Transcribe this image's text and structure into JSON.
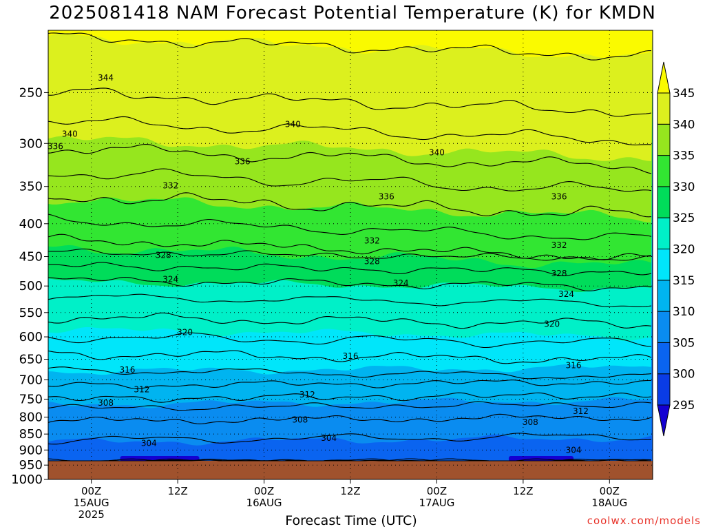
{
  "title": "2025081418 NAM Forecast Potential Temperature (K) for KMDN",
  "credit": "coolwx.com/models",
  "chart_data": {
    "type": "heatmap",
    "title": "2025081418 NAM Forecast Potential Temperature (K) for KMDN",
    "xlabel": "Forecast Time (UTC)",
    "ylabel": "",
    "y_scale": "log",
    "y_reversed": true,
    "ylim": [
      1000,
      200
    ],
    "xlim": [
      "2025-08-14 18Z",
      "2025-08-18 06Z"
    ],
    "grid": true,
    "y_ticks": [
      250,
      300,
      350,
      400,
      450,
      500,
      550,
      600,
      650,
      700,
      750,
      800,
      850,
      900,
      950,
      1000
    ],
    "x_ticks": [
      {
        "time": "2025-08-15 00Z",
        "lines": [
          "00Z",
          "15AUG",
          "2025"
        ]
      },
      {
        "time": "2025-08-15 12Z",
        "lines": [
          "12Z"
        ]
      },
      {
        "time": "2025-08-16 00Z",
        "lines": [
          "00Z",
          "16AUG"
        ]
      },
      {
        "time": "2025-08-16 12Z",
        "lines": [
          "12Z"
        ]
      },
      {
        "time": "2025-08-17 00Z",
        "lines": [
          "00Z",
          "17AUG"
        ]
      },
      {
        "time": "2025-08-17 12Z",
        "lines": [
          "12Z"
        ]
      },
      {
        "time": "2025-08-18 00Z",
        "lines": [
          "00Z",
          "18AUG"
        ]
      }
    ],
    "colorbar": {
      "levels": [
        295,
        300,
        305,
        310,
        315,
        320,
        325,
        330,
        335,
        340,
        345
      ],
      "labels": [
        "345",
        "340",
        "335",
        "330",
        "325",
        "320",
        "315",
        "310",
        "305",
        "300",
        "295"
      ],
      "colors": [
        "#1400d2",
        "#0a3ce6",
        "#0a64f0",
        "#0a8cf0",
        "#00b4f0",
        "#00e6fa",
        "#00f0c8",
        "#00dc5a",
        "#32e632",
        "#96e61e",
        "#dcf01e",
        "#fafa00"
      ]
    },
    "isotherms": [
      {
        "theta": 304,
        "pressure": 905,
        "label": "304"
      },
      {
        "theta": 308,
        "pressure": 790,
        "label": "308"
      },
      {
        "theta": 312,
        "pressure": 740,
        "label": "312"
      },
      {
        "theta": 316,
        "pressure": 660,
        "label": "316"
      },
      {
        "theta": 320,
        "pressure": 585,
        "label": "320"
      },
      {
        "theta": 324,
        "pressure": 505,
        "label": "324"
      },
      {
        "theta": 328,
        "pressure": 455,
        "label": "328"
      },
      {
        "theta": 332,
        "pressure": 415,
        "label": "332"
      },
      {
        "theta": 336,
        "pressure": 350,
        "label": "336"
      },
      {
        "theta": 340,
        "pressure": 295,
        "label": "340"
      },
      {
        "theta": 344,
        "pressure": 240,
        "label": "344"
      }
    ],
    "contour_labels": [
      {
        "text": "344",
        "time": "2025-08-15 02Z",
        "pressure": 237
      },
      {
        "text": "340",
        "time": "2025-08-14 21Z",
        "pressure": 290
      },
      {
        "text": "340",
        "time": "2025-08-16 04Z",
        "pressure": 280
      },
      {
        "text": "340",
        "time": "2025-08-17 00Z",
        "pressure": 310
      },
      {
        "text": "336",
        "time": "2025-08-14 19Z",
        "pressure": 303
      },
      {
        "text": "336",
        "time": "2025-08-15 21Z",
        "pressure": 320
      },
      {
        "text": "336",
        "time": "2025-08-16 17Z",
        "pressure": 363
      },
      {
        "text": "336",
        "time": "2025-08-17 17Z",
        "pressure": 363
      },
      {
        "text": "332",
        "time": "2025-08-15 11Z",
        "pressure": 349
      },
      {
        "text": "332",
        "time": "2025-08-16 15Z",
        "pressure": 425
      },
      {
        "text": "332",
        "time": "2025-08-17 17Z",
        "pressure": 432
      },
      {
        "text": "328",
        "time": "2025-08-15 10Z",
        "pressure": 448
      },
      {
        "text": "328",
        "time": "2025-08-16 15Z",
        "pressure": 458
      },
      {
        "text": "328",
        "time": "2025-08-17 17Z",
        "pressure": 478
      },
      {
        "text": "324",
        "time": "2025-08-15 11Z",
        "pressure": 488
      },
      {
        "text": "324",
        "time": "2025-08-16 19Z",
        "pressure": 495
      },
      {
        "text": "324",
        "time": "2025-08-17 18Z",
        "pressure": 515
      },
      {
        "text": "320",
        "time": "2025-08-15 13Z",
        "pressure": 590
      },
      {
        "text": "320",
        "time": "2025-08-17 16Z",
        "pressure": 573
      },
      {
        "text": "316",
        "time": "2025-08-15 05Z",
        "pressure": 675
      },
      {
        "text": "316",
        "time": "2025-08-16 12Z",
        "pressure": 643
      },
      {
        "text": "316",
        "time": "2025-08-17 19Z",
        "pressure": 665
      },
      {
        "text": "312",
        "time": "2025-08-15 07Z",
        "pressure": 725
      },
      {
        "text": "312",
        "time": "2025-08-16 06Z",
        "pressure": 738
      },
      {
        "text": "312",
        "time": "2025-08-17 20Z",
        "pressure": 783
      },
      {
        "text": "308",
        "time": "2025-08-15 02Z",
        "pressure": 760
      },
      {
        "text": "308",
        "time": "2025-08-16 05Z",
        "pressure": 808
      },
      {
        "text": "308",
        "time": "2025-08-17 13Z",
        "pressure": 815
      },
      {
        "text": "304",
        "time": "2025-08-15 08Z",
        "pressure": 878
      },
      {
        "text": "304",
        "time": "2025-08-16 09Z",
        "pressure": 862
      },
      {
        "text": "304",
        "time": "2025-08-17 19Z",
        "pressure": 900
      }
    ]
  }
}
